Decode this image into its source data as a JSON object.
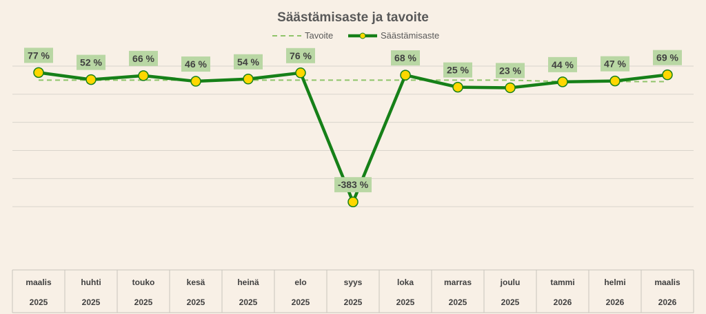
{
  "chart_data": {
    "type": "line",
    "title": "Säästämisaste ja tavoite",
    "xlabel": "",
    "ylabel": "",
    "grid": true,
    "legend_position": "top",
    "categories": [
      {
        "month": "maalis",
        "year": "2025"
      },
      {
        "month": "huhti",
        "year": "2025"
      },
      {
        "month": "touko",
        "year": "2025"
      },
      {
        "month": "kesä",
        "year": "2025"
      },
      {
        "month": "heinä",
        "year": "2025"
      },
      {
        "month": "elo",
        "year": "2025"
      },
      {
        "month": "syys",
        "year": "2025"
      },
      {
        "month": "loka",
        "year": "2025"
      },
      {
        "month": "marras",
        "year": "2025"
      },
      {
        "month": "joulu",
        "year": "2025"
      },
      {
        "month": "tammi",
        "year": "2026"
      },
      {
        "month": "helmi",
        "year": "2026"
      },
      {
        "month": "maalis",
        "year": "2026"
      }
    ],
    "series": [
      {
        "name": "Tavoite",
        "style": "dashed",
        "color": "#8fc46a",
        "values": [
          50,
          50,
          50,
          50,
          50,
          50,
          50,
          50,
          50,
          50,
          45,
          45,
          45
        ]
      },
      {
        "name": "Säästämisaste",
        "style": "solid-markers",
        "color": "#168018",
        "marker_color": "#ffd700",
        "values": [
          77,
          52,
          66,
          46,
          54,
          76,
          383,
          68,
          25,
          23,
          44,
          47,
          69
        ],
        "signs": [
          1,
          1,
          1,
          1,
          1,
          1,
          -1,
          1,
          1,
          1,
          1,
          1,
          1
        ],
        "labels": [
          "77 %",
          "52 %",
          "66 %",
          "46 %",
          "54 %",
          "76 %",
          "-383 %",
          "68 %",
          "25 %",
          "23 %",
          "44 %",
          "47 %",
          "69 %"
        ]
      }
    ],
    "ylim": [
      -500,
      100
    ],
    "y_gridlines": [
      100,
      0,
      -100,
      -200,
      -300,
      -400
    ],
    "label_box_color": "#b9d7a4"
  }
}
